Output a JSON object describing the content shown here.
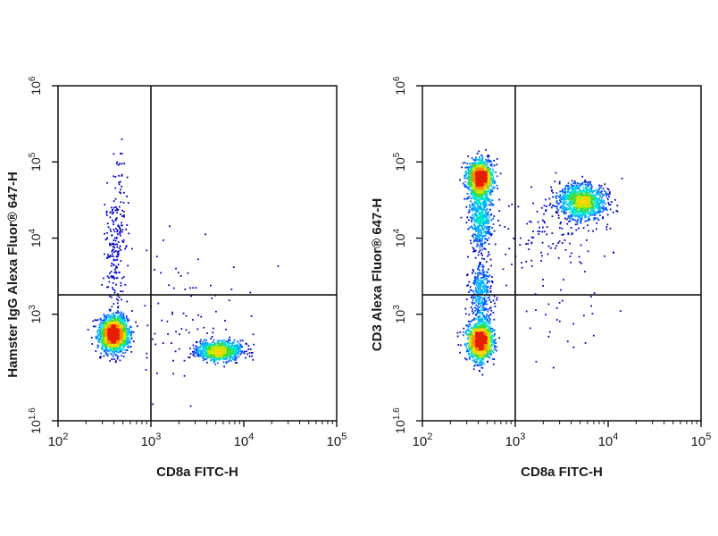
{
  "chart_data": [
    {
      "type": "scatter",
      "subtype": "flow-cytometry-density",
      "xlabel": "CD8a FITC-H",
      "ylabel": "Hamster IgG Alexa Fluor® 647-H",
      "x_scale": "log",
      "y_scale": "log",
      "xlim": [
        100,
        100000
      ],
      "ylim": [
        40,
        1000000
      ],
      "x_ticks": [
        {
          "value": 100,
          "base": "10",
          "exp": "2"
        },
        {
          "value": 1000,
          "base": "10",
          "exp": "3"
        },
        {
          "value": 10000,
          "base": "10",
          "exp": "4"
        },
        {
          "value": 100000,
          "base": "10",
          "exp": "5"
        }
      ],
      "y_ticks": [
        {
          "value": 40,
          "base": "10",
          "exp": "1.6"
        },
        {
          "value": 1000,
          "base": "10",
          "exp": "3"
        },
        {
          "value": 10000,
          "base": "10",
          "exp": "4"
        },
        {
          "value": 100000,
          "base": "10",
          "exp": "5"
        },
        {
          "value": 1000000,
          "base": "10",
          "exp": "6"
        }
      ],
      "gates": {
        "x": 1000,
        "y": 1800
      },
      "populations": [
        {
          "x_center": 400,
          "y_center": 550,
          "sx": 0.075,
          "sy": 0.11,
          "count": 1900
        },
        {
          "x_center": 5500,
          "y_center": 330,
          "sx": 0.12,
          "sy": 0.06,
          "count": 950
        },
        {
          "x_center": 420,
          "y_center": 9000,
          "sx": 0.06,
          "sy": 0.5,
          "count": 220
        },
        {
          "x_center": 2000,
          "y_center": 800,
          "sx": 0.35,
          "sy": 0.5,
          "count": 90
        }
      ],
      "colormap": [
        "#0000c8",
        "#0055ff",
        "#00b4ff",
        "#00e6c8",
        "#3cdc3c",
        "#c8e600",
        "#ffd200",
        "#ff8c00",
        "#e61e00"
      ]
    },
    {
      "type": "scatter",
      "subtype": "flow-cytometry-density",
      "xlabel": "CD8a FITC-H",
      "ylabel": "CD3 Alexa Fluor® 647-H",
      "x_scale": "log",
      "y_scale": "log",
      "xlim": [
        100,
        100000
      ],
      "ylim": [
        40,
        1000000
      ],
      "x_ticks": [
        {
          "value": 100,
          "base": "10",
          "exp": "2"
        },
        {
          "value": 1000,
          "base": "10",
          "exp": "3"
        },
        {
          "value": 10000,
          "base": "10",
          "exp": "4"
        },
        {
          "value": 100000,
          "base": "10",
          "exp": "5"
        }
      ],
      "y_ticks": [
        {
          "value": 40,
          "base": "10",
          "exp": "1.6"
        },
        {
          "value": 1000,
          "base": "10",
          "exp": "3"
        },
        {
          "value": 10000,
          "base": "10",
          "exp": "4"
        },
        {
          "value": 100000,
          "base": "10",
          "exp": "5"
        },
        {
          "value": 1000000,
          "base": "10",
          "exp": "6"
        }
      ],
      "gates": {
        "x": 1000,
        "y": 1800
      },
      "populations": [
        {
          "x_center": 420,
          "y_center": 60000,
          "sx": 0.065,
          "sy": 0.12,
          "count": 1300
        },
        {
          "x_center": 420,
          "y_center": 18000,
          "sx": 0.06,
          "sy": 0.22,
          "count": 500
        },
        {
          "x_center": 420,
          "y_center": 450,
          "sx": 0.065,
          "sy": 0.13,
          "count": 1400
        },
        {
          "x_center": 420,
          "y_center": 2000,
          "sx": 0.06,
          "sy": 0.2,
          "count": 350
        },
        {
          "x_center": 5200,
          "y_center": 30000,
          "sx": 0.13,
          "sy": 0.12,
          "count": 1100
        },
        {
          "x_center": 2500,
          "y_center": 12000,
          "sx": 0.3,
          "sy": 0.3,
          "count": 120
        },
        {
          "x_center": 2500,
          "y_center": 900,
          "sx": 0.3,
          "sy": 0.3,
          "count": 30
        }
      ],
      "colormap": [
        "#0000c8",
        "#0055ff",
        "#00b4ff",
        "#00e6c8",
        "#3cdc3c",
        "#c8e600",
        "#ffd200",
        "#ff8c00",
        "#e61e00"
      ]
    }
  ]
}
